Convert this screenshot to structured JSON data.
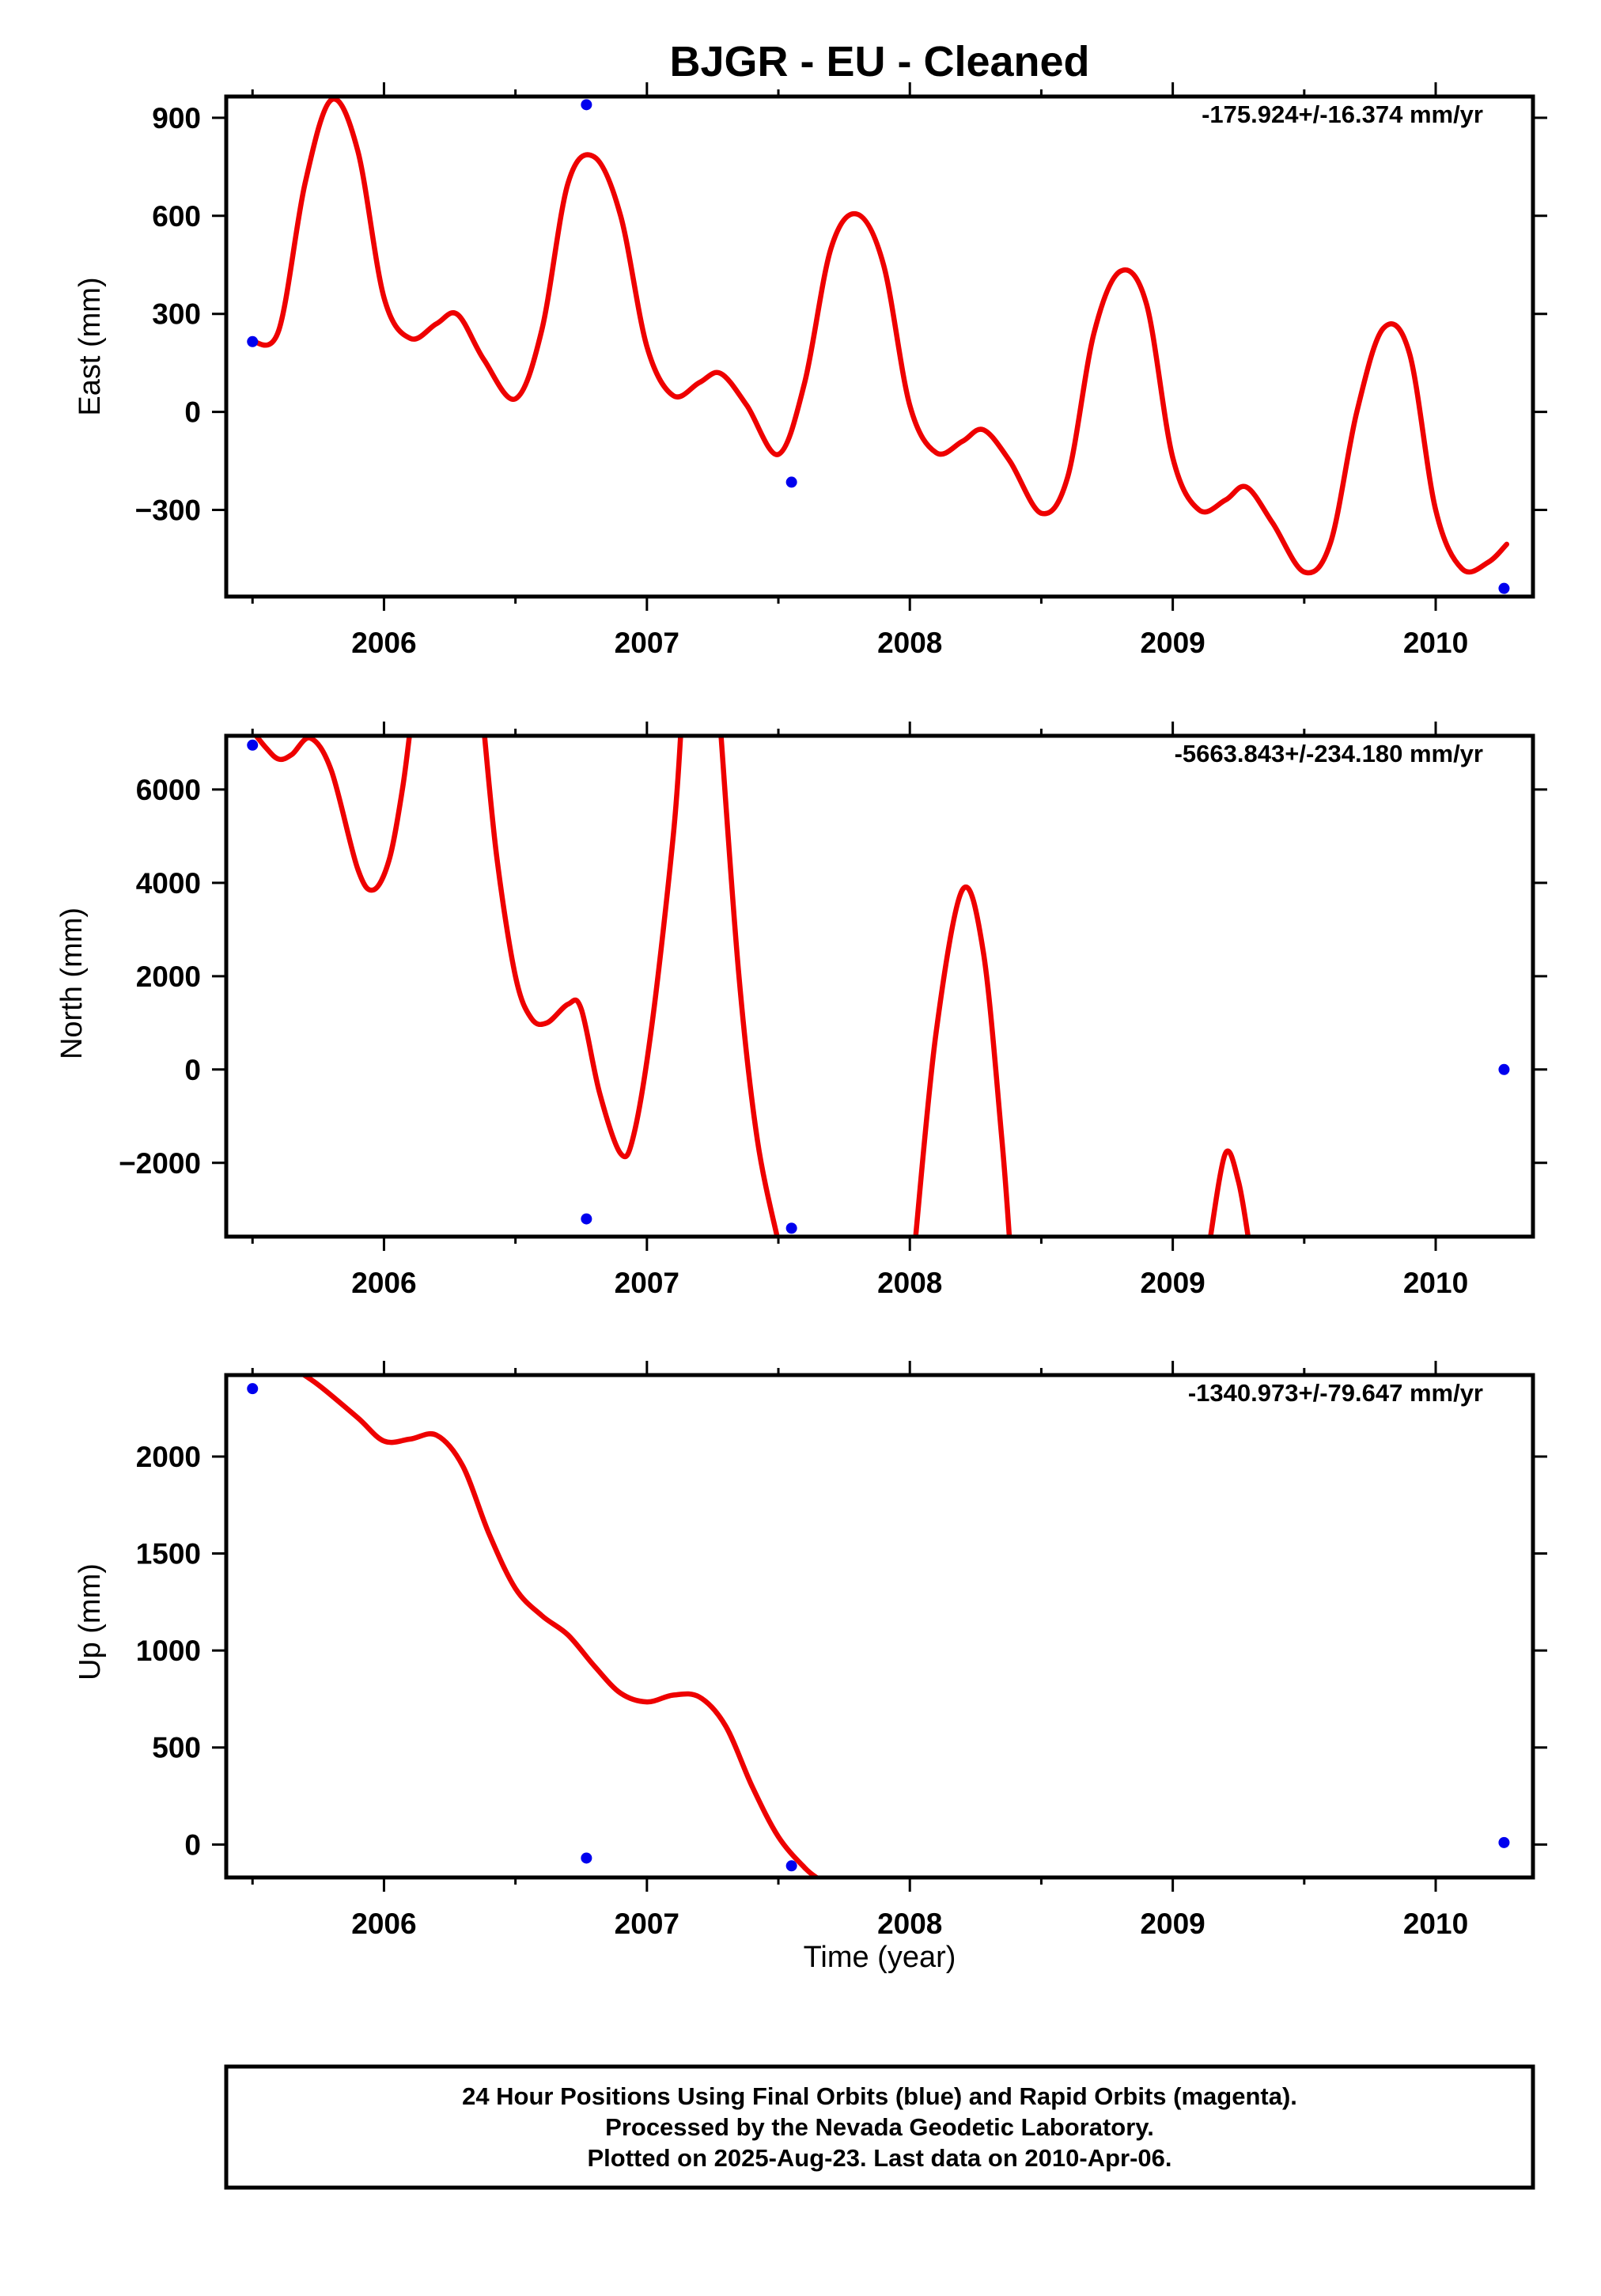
{
  "title": "BJGR  - EU - Cleaned",
  "colors": {
    "fit": "#ee0000",
    "final_orbits": "#0000ee",
    "frame": "#000000"
  },
  "xlabel": "Time (year)",
  "footer": {
    "line1": "24 Hour Positions Using Final Orbits (blue) and Rapid Orbits (magenta).",
    "line2": "Processed by the Nevada Geodetic Laboratory.",
    "line3": "Plotted on 2025-Aug-23. Last data on 2010-Apr-06."
  },
  "chart_data": [
    {
      "type": "scatter",
      "ylabel": "East (mm)",
      "rate": "-175.924+/-16.374 mm/yr",
      "xlim": [
        2005.4,
        2010.37
      ],
      "ylim": [
        -565,
        965
      ],
      "xticks": [
        2006,
        2007,
        2008,
        2009,
        2010
      ],
      "xtick_labels": [
        "2006",
        "2007",
        "2008",
        "2009",
        "2010"
      ],
      "yticks": [
        900,
        600,
        300,
        0,
        -300
      ],
      "ytick_labels": [
        "900",
        "600",
        "300",
        "0",
        "−300"
      ],
      "points": [
        [
          2005.5,
          215
        ],
        [
          2006.77,
          940
        ],
        [
          2007.55,
          -215
        ],
        [
          2010.26,
          -540
        ]
      ],
      "fit": [
        [
          2005.5,
          215
        ],
        [
          2005.6,
          250
        ],
        [
          2005.7,
          700
        ],
        [
          2005.8,
          955
        ],
        [
          2005.9,
          800
        ],
        [
          2006.0,
          350
        ],
        [
          2006.1,
          225
        ],
        [
          2006.2,
          270
        ],
        [
          2006.28,
          298
        ],
        [
          2006.38,
          160
        ],
        [
          2006.5,
          40
        ],
        [
          2006.6,
          250
        ],
        [
          2006.7,
          700
        ],
        [
          2006.8,
          780
        ],
        [
          2006.9,
          600
        ],
        [
          2007.0,
          200
        ],
        [
          2007.1,
          50
        ],
        [
          2007.2,
          90
        ],
        [
          2007.28,
          118
        ],
        [
          2007.38,
          20
        ],
        [
          2007.5,
          -130
        ],
        [
          2007.6,
          90
        ],
        [
          2007.7,
          500
        ],
        [
          2007.8,
          605
        ],
        [
          2007.9,
          450
        ],
        [
          2008.0,
          20
        ],
        [
          2008.1,
          -125
        ],
        [
          2008.2,
          -90
        ],
        [
          2008.28,
          -55
        ],
        [
          2008.38,
          -150
        ],
        [
          2008.5,
          -310
        ],
        [
          2008.6,
          -200
        ],
        [
          2008.7,
          240
        ],
        [
          2008.8,
          430
        ],
        [
          2008.9,
          330
        ],
        [
          2009.0,
          -140
        ],
        [
          2009.1,
          -300
        ],
        [
          2009.2,
          -270
        ],
        [
          2009.28,
          -230
        ],
        [
          2009.38,
          -340
        ],
        [
          2009.5,
          -490
        ],
        [
          2009.6,
          -400
        ],
        [
          2009.7,
          0
        ],
        [
          2009.8,
          255
        ],
        [
          2009.9,
          180
        ],
        [
          2010.0,
          -300
        ],
        [
          2010.1,
          -480
        ],
        [
          2010.2,
          -460
        ],
        [
          2010.27,
          -405
        ]
      ]
    },
    {
      "type": "scatter",
      "ylabel": "North (mm)",
      "rate": "-5663.843+/-234.180 mm/yr",
      "xlim": [
        2005.4,
        2010.37
      ],
      "ylim": [
        -3580,
        7150
      ],
      "xticks": [
        2006,
        2007,
        2008,
        2009,
        2010
      ],
      "xtick_labels": [
        "2006",
        "2007",
        "2008",
        "2009",
        "2010"
      ],
      "yticks": [
        6000,
        4000,
        2000,
        0,
        -2000
      ],
      "ytick_labels": [
        "6000",
        "4000",
        "2000",
        "0",
        "−2000"
      ],
      "points": [
        [
          2005.5,
          6950
        ],
        [
          2006.77,
          -3200
        ],
        [
          2007.55,
          -3400
        ],
        [
          2010.26,
          0
        ]
      ],
      "fit_segments": [
        [
          [
            2005.48,
            7400
          ],
          [
            2005.55,
            6900
          ],
          [
            2005.6,
            6650
          ],
          [
            2005.65,
            6750
          ],
          [
            2005.72,
            7100
          ],
          [
            2005.8,
            6400
          ],
          [
            2005.9,
            4300
          ],
          [
            2005.96,
            3850
          ],
          [
            2006.02,
            4500
          ],
          [
            2006.07,
            6000
          ],
          [
            2006.1,
            7300
          ]
        ],
        [
          [
            2006.38,
            7300
          ],
          [
            2006.43,
            4500
          ],
          [
            2006.5,
            2000
          ],
          [
            2006.56,
            1100
          ],
          [
            2006.62,
            1000
          ],
          [
            2006.7,
            1400
          ],
          [
            2006.75,
            1300
          ],
          [
            2006.82,
            -500
          ],
          [
            2006.9,
            -1800
          ],
          [
            2006.95,
            -1400
          ],
          [
            2007.02,
            1000
          ],
          [
            2007.1,
            5000
          ],
          [
            2007.13,
            7300
          ]
        ],
        [
          [
            2007.28,
            7300
          ],
          [
            2007.35,
            2000
          ],
          [
            2007.42,
            -1500
          ],
          [
            2007.5,
            -3700
          ]
        ],
        [
          [
            2008.02,
            -3700
          ],
          [
            2008.1,
            800
          ],
          [
            2008.2,
            3850
          ],
          [
            2008.28,
            2500
          ],
          [
            2008.35,
            -1500
          ],
          [
            2008.38,
            -3700
          ]
        ],
        [
          [
            2009.14,
            -3700
          ],
          [
            2009.2,
            -1800
          ],
          [
            2009.25,
            -2400
          ],
          [
            2009.29,
            -3700
          ]
        ]
      ]
    },
    {
      "type": "scatter",
      "ylabel": "Up (mm)",
      "rate": "-1340.973+/-79.647 mm/yr",
      "xlim": [
        2005.4,
        2010.37
      ],
      "ylim": [
        -170,
        2420
      ],
      "xticks": [
        2006,
        2007,
        2008,
        2009,
        2010
      ],
      "xtick_labels": [
        "2006",
        "2007",
        "2008",
        "2009",
        "2010"
      ],
      "yticks": [
        2000,
        1500,
        1000,
        500,
        0
      ],
      "ytick_labels": [
        "2000",
        "1500",
        "1000",
        "500",
        "0"
      ],
      "points": [
        [
          2005.5,
          2350
        ],
        [
          2006.77,
          -70
        ],
        [
          2007.55,
          -110
        ],
        [
          2010.26,
          10
        ]
      ],
      "fit": [
        [
          2005.65,
          2460
        ],
        [
          2005.75,
          2370
        ],
        [
          2005.9,
          2200
        ],
        [
          2006.0,
          2080
        ],
        [
          2006.1,
          2090
        ],
        [
          2006.2,
          2110
        ],
        [
          2006.3,
          1950
        ],
        [
          2006.4,
          1600
        ],
        [
          2006.5,
          1320
        ],
        [
          2006.6,
          1180
        ],
        [
          2006.7,
          1080
        ],
        [
          2006.8,
          920
        ],
        [
          2006.9,
          780
        ],
        [
          2007.0,
          735
        ],
        [
          2007.1,
          770
        ],
        [
          2007.2,
          760
        ],
        [
          2007.3,
          610
        ],
        [
          2007.4,
          300
        ],
        [
          2007.5,
          40
        ],
        [
          2007.6,
          -120
        ],
        [
          2007.65,
          -175
        ]
      ]
    }
  ]
}
